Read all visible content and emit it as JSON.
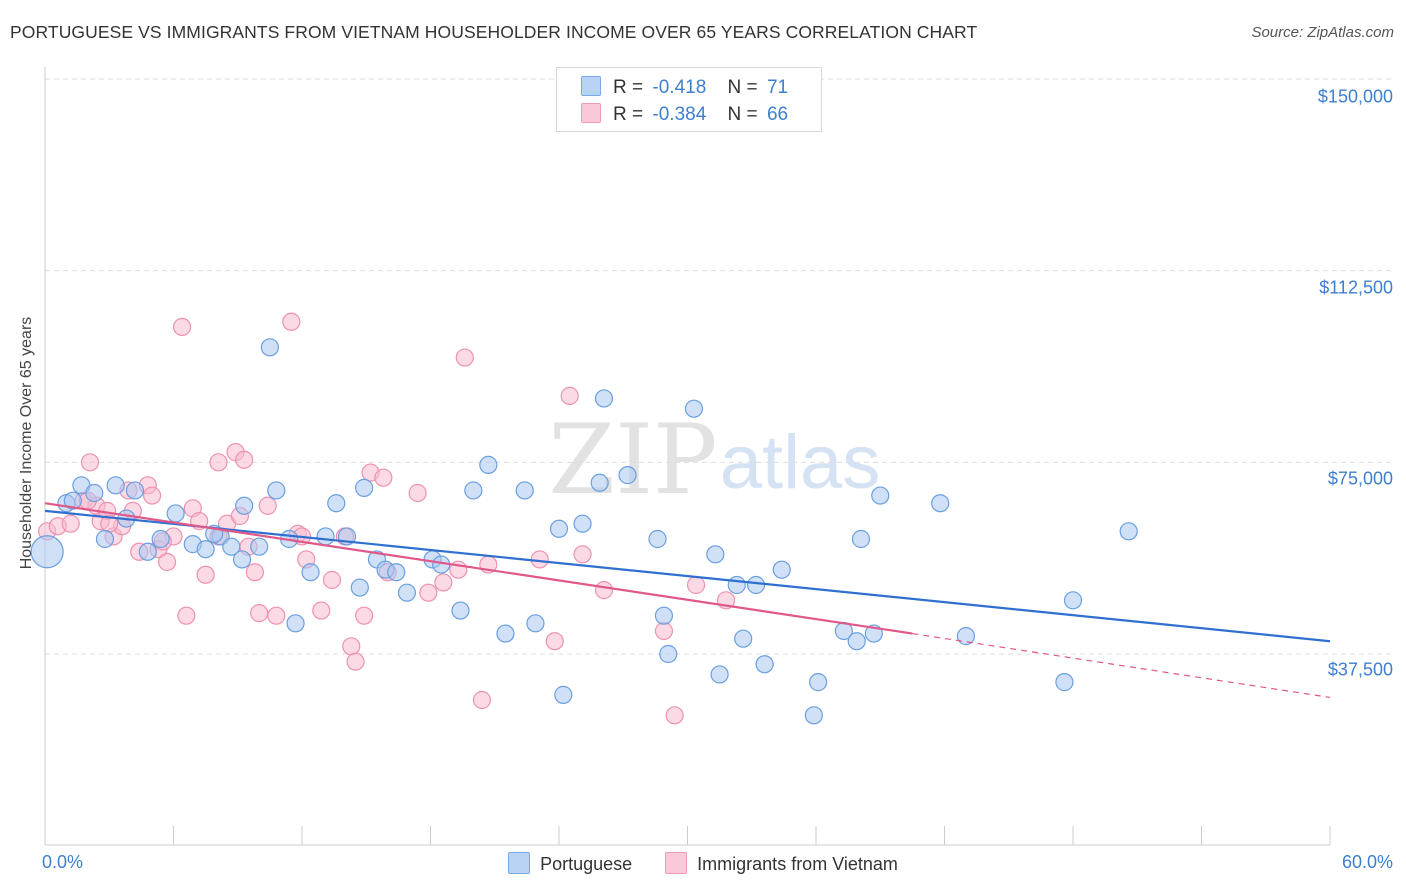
{
  "header": {
    "title": "PORTUGUESE VS IMMIGRANTS FROM VIETNAM HOUSEHOLDER INCOME OVER 65 YEARS CORRELATION CHART",
    "source": "Source: ZipAtlas.com"
  },
  "watermark": {
    "zip": "ZIP",
    "atlas": "atlas"
  },
  "legend": {
    "r_label": "R =",
    "n_label": "N =",
    "portuguese": {
      "r": "-0.418",
      "n": "71"
    },
    "vietnam": {
      "r": "-0.384",
      "n": "66"
    }
  },
  "colors": {
    "portuguese_fill": "#a9c8f0",
    "portuguese_stroke": "#6a9fe0",
    "portuguese_line": "#2e6fd0",
    "vietnam_fill": "#f7bcd0",
    "vietnam_stroke": "#ee91b2",
    "vietnam_line": "#e0588a",
    "tick_text": "#3d7fd1",
    "grid": "#dddddd"
  },
  "chart_data": {
    "type": "scatter",
    "title": "PORTUGUESE VS IMMIGRANTS FROM VIETNAM HOUSEHOLDER INCOME OVER 65 YEARS CORRELATION CHART",
    "xlabel": "",
    "ylabel": "Householder Income Over 65 years",
    "xlim": [
      0,
      60
    ],
    "ylim": [
      0,
      155000
    ],
    "x_tick_labels": [
      "0.0%",
      "60.0%"
    ],
    "y_ticks": [
      37500,
      75000,
      112500,
      150000
    ],
    "y_tick_labels": [
      "$37,500",
      "$75,000",
      "$112,500",
      "$150,000"
    ],
    "grid": "horizontal dashed",
    "legend_position": "top-center",
    "series": [
      {
        "name": "Portuguese",
        "trend": {
          "x0": 0,
          "y0": 65500,
          "x1": 60,
          "y1": 40000
        },
        "points": [
          [
            0.1,
            57500
          ],
          [
            1.0,
            67000
          ],
          [
            1.3,
            67500
          ],
          [
            1.7,
            70500
          ],
          [
            2.3,
            69000
          ],
          [
            2.8,
            60000
          ],
          [
            3.3,
            70500
          ],
          [
            3.8,
            64000
          ],
          [
            4.2,
            69500
          ],
          [
            4.8,
            57500
          ],
          [
            5.4,
            60000
          ],
          [
            6.1,
            65000
          ],
          [
            6.9,
            59000
          ],
          [
            7.5,
            58000
          ],
          [
            8.2,
            60500
          ],
          [
            8.7,
            58500
          ],
          [
            9.2,
            56000
          ],
          [
            9.3,
            66500
          ],
          [
            10.0,
            58500
          ],
          [
            10.5,
            97500
          ],
          [
            10.8,
            69500
          ],
          [
            11.4,
            60000
          ],
          [
            11.7,
            43500
          ],
          [
            12.4,
            53500
          ],
          [
            13.1,
            60500
          ],
          [
            13.6,
            67000
          ],
          [
            14.1,
            60500
          ],
          [
            14.7,
            50500
          ],
          [
            14.9,
            70000
          ],
          [
            15.5,
            56000
          ],
          [
            15.9,
            54000
          ],
          [
            16.4,
            53500
          ],
          [
            16.9,
            49500
          ],
          [
            18.1,
            56000
          ],
          [
            18.5,
            55000
          ],
          [
            19.4,
            46000
          ],
          [
            20.0,
            69500
          ],
          [
            20.7,
            74500
          ],
          [
            21.5,
            41500
          ],
          [
            22.4,
            69500
          ],
          [
            22.9,
            43500
          ],
          [
            24.0,
            62000
          ],
          [
            24.2,
            29500
          ],
          [
            25.1,
            63000
          ],
          [
            25.9,
            71000
          ],
          [
            26.1,
            87500
          ],
          [
            27.2,
            72500
          ],
          [
            28.6,
            60000
          ],
          [
            28.9,
            45000
          ],
          [
            29.1,
            37500
          ],
          [
            30.3,
            85500
          ],
          [
            31.3,
            57000
          ],
          [
            31.5,
            33500
          ],
          [
            32.3,
            51000
          ],
          [
            32.6,
            40500
          ],
          [
            33.2,
            51000
          ],
          [
            33.6,
            35500
          ],
          [
            34.4,
            54000
          ],
          [
            35.9,
            25500
          ],
          [
            36.1,
            32000
          ],
          [
            37.3,
            42000
          ],
          [
            37.9,
            40000
          ],
          [
            38.1,
            60000
          ],
          [
            38.7,
            41500
          ],
          [
            39.0,
            68500
          ],
          [
            41.8,
            67000
          ],
          [
            43.0,
            41000
          ],
          [
            47.6,
            32000
          ],
          [
            48.0,
            48000
          ],
          [
            50.6,
            61500
          ],
          [
            7.9,
            61000
          ]
        ]
      },
      {
        "name": "Immigrants from Vietnam",
        "trend": {
          "x0": 0,
          "y0": 67000,
          "x1": 40.5,
          "y1": 41500,
          "dash_to_x": 60,
          "dash_to_y": 29000
        },
        "points": [
          [
            0.1,
            61500
          ],
          [
            0.6,
            62500
          ],
          [
            1.2,
            63000
          ],
          [
            1.8,
            67500
          ],
          [
            2.1,
            75000
          ],
          [
            2.4,
            66500
          ],
          [
            2.6,
            63500
          ],
          [
            2.9,
            65500
          ],
          [
            3.2,
            60500
          ],
          [
            3.6,
            62500
          ],
          [
            3.9,
            69500
          ],
          [
            4.1,
            65500
          ],
          [
            4.4,
            57500
          ],
          [
            4.8,
            70500
          ],
          [
            5.0,
            68500
          ],
          [
            5.3,
            58000
          ],
          [
            5.7,
            55500
          ],
          [
            6.0,
            60500
          ],
          [
            6.4,
            101500
          ],
          [
            6.6,
            45000
          ],
          [
            6.9,
            66000
          ],
          [
            7.2,
            63500
          ],
          [
            7.5,
            53000
          ],
          [
            8.1,
            60500
          ],
          [
            8.1,
            75000
          ],
          [
            8.5,
            63000
          ],
          [
            8.9,
            77000
          ],
          [
            9.1,
            64500
          ],
          [
            9.3,
            75500
          ],
          [
            9.8,
            53500
          ],
          [
            10.0,
            45500
          ],
          [
            10.4,
            66500
          ],
          [
            10.8,
            45000
          ],
          [
            11.5,
            102500
          ],
          [
            11.8,
            61000
          ],
          [
            12.2,
            56000
          ],
          [
            12.9,
            46000
          ],
          [
            13.4,
            52000
          ],
          [
            14.3,
            39000
          ],
          [
            14.5,
            36000
          ],
          [
            14.9,
            45000
          ],
          [
            15.2,
            73000
          ],
          [
            16.0,
            53500
          ],
          [
            17.4,
            69000
          ],
          [
            17.9,
            49500
          ],
          [
            18.6,
            51500
          ],
          [
            19.3,
            54000
          ],
          [
            19.6,
            95500
          ],
          [
            20.4,
            28500
          ],
          [
            20.7,
            55000
          ],
          [
            23.1,
            56000
          ],
          [
            23.8,
            40000
          ],
          [
            24.5,
            88000
          ],
          [
            25.1,
            57000
          ],
          [
            26.1,
            50000
          ],
          [
            28.9,
            42000
          ],
          [
            29.4,
            25500
          ],
          [
            30.4,
            51000
          ],
          [
            31.8,
            48000
          ],
          [
            15.8,
            72000
          ],
          [
            5.5,
            59500
          ],
          [
            3.0,
            63000
          ],
          [
            12.0,
            60500
          ],
          [
            2.0,
            67500
          ],
          [
            9.5,
            58500
          ],
          [
            14.0,
            60500
          ]
        ]
      }
    ]
  },
  "bottom_legend": {
    "portuguese": "Portuguese",
    "vietnam": "Immigrants from Vietnam"
  }
}
